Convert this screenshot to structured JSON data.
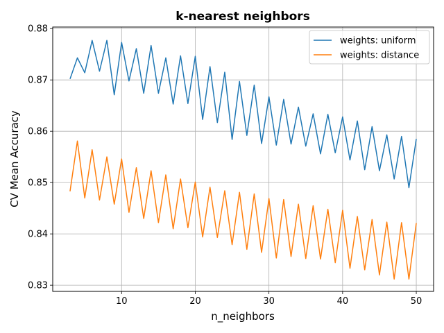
{
  "chart_data": {
    "type": "line",
    "title": "k-nearest neighbors",
    "xlabel": "n_neighbors",
    "ylabel": "CV Mean Accuracy",
    "xlim": [
      0.65,
      52.35
    ],
    "ylim": [
      0.8288,
      0.8803
    ],
    "xticks": [
      10,
      20,
      30,
      40,
      50
    ],
    "yticks": [
      0.83,
      0.84,
      0.85,
      0.86,
      0.87,
      0.88
    ],
    "xtick_labels": [
      "10",
      "20",
      "30",
      "40",
      "50"
    ],
    "ytick_labels": [
      "0.83",
      "0.84",
      "0.85",
      "0.86",
      "0.87",
      "0.88"
    ],
    "grid": true,
    "legend_position": "top-right",
    "x": [
      3,
      4,
      5,
      6,
      7,
      8,
      9,
      10,
      11,
      12,
      13,
      14,
      15,
      16,
      17,
      18,
      19,
      20,
      21,
      22,
      23,
      24,
      25,
      26,
      27,
      28,
      29,
      30,
      31,
      32,
      33,
      34,
      35,
      36,
      37,
      38,
      39,
      40,
      41,
      42,
      43,
      44,
      45,
      46,
      47,
      48,
      49,
      50
    ],
    "series": [
      {
        "name": "weights: uniform",
        "color": "#1f77b4",
        "values": [
          0.8702,
          0.8743,
          0.8714,
          0.8777,
          0.8717,
          0.8777,
          0.8671,
          0.8773,
          0.8698,
          0.8761,
          0.8674,
          0.8767,
          0.8674,
          0.8743,
          0.8653,
          0.8747,
          0.8654,
          0.8746,
          0.8623,
          0.8726,
          0.8617,
          0.8715,
          0.8584,
          0.8697,
          0.8592,
          0.869,
          0.8576,
          0.8667,
          0.8573,
          0.8662,
          0.8575,
          0.8647,
          0.8571,
          0.8634,
          0.8556,
          0.8633,
          0.8558,
          0.8628,
          0.8544,
          0.862,
          0.8525,
          0.8609,
          0.8523,
          0.8593,
          0.8507,
          0.859,
          0.849,
          0.8585
        ]
      },
      {
        "name": "weights: distance",
        "color": "#ff7f0e",
        "values": [
          0.8483,
          0.8581,
          0.847,
          0.8564,
          0.8466,
          0.855,
          0.8458,
          0.8546,
          0.8442,
          0.8529,
          0.843,
          0.8523,
          0.8422,
          0.8515,
          0.841,
          0.8507,
          0.8412,
          0.8501,
          0.8394,
          0.8491,
          0.8393,
          0.8484,
          0.8379,
          0.8481,
          0.837,
          0.8478,
          0.8364,
          0.8469,
          0.8353,
          0.8467,
          0.8356,
          0.8458,
          0.8352,
          0.8455,
          0.8351,
          0.8448,
          0.8344,
          0.8446,
          0.8333,
          0.8434,
          0.833,
          0.8428,
          0.832,
          0.8423,
          0.8312,
          0.8422,
          0.8312,
          0.8421
        ]
      }
    ]
  }
}
